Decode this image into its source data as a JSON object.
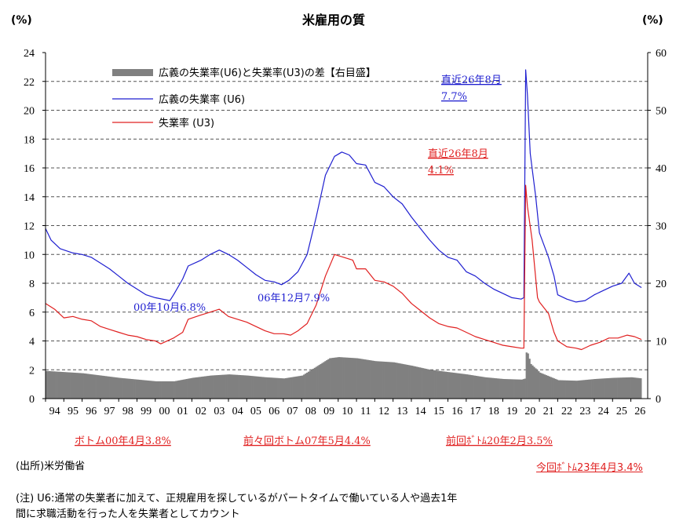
{
  "chart_data": {
    "type": "line",
    "title": "米雇用の質",
    "left_unit": "(%)",
    "right_unit": "(%)",
    "ylim_left": [
      0,
      24
    ],
    "ylim_right": [
      0,
      60
    ],
    "yticks_left": [
      "0",
      "2",
      "4",
      "6",
      "8",
      "10",
      "12",
      "14",
      "16",
      "18",
      "20",
      "22",
      "24"
    ],
    "yticks_right": [
      "0",
      "10",
      "20",
      "30",
      "40",
      "50",
      "60"
    ],
    "x_ticks": [
      "94",
      "95",
      "96",
      "97",
      "98",
      "99",
      "00",
      "01",
      "02",
      "03",
      "04",
      "05",
      "06",
      "07",
      "08",
      "09",
      "10",
      "11",
      "12",
      "13",
      "14",
      "15",
      "16",
      "17",
      "18",
      "19",
      "20",
      "21",
      "22",
      "23",
      "24",
      "25",
      "26"
    ],
    "x_range": [
      1994.0,
      2026.92
    ],
    "grid": "horizontal-dashed",
    "legend_position": "top-left",
    "series": [
      {
        "name": "広義の失業率(U6)と失業率(U3)の差【右目盛】",
        "kind": "bar",
        "axis": "right",
        "color": "#808080",
        "points": [
          [
            1994.0,
            4.8
          ],
          [
            1995.0,
            4.6
          ],
          [
            1996.0,
            4.4
          ],
          [
            1997.0,
            4.0
          ],
          [
            1998.0,
            3.6
          ],
          [
            1999.0,
            3.3
          ],
          [
            2000.0,
            3.0
          ],
          [
            2001.0,
            3.0
          ],
          [
            2002.0,
            3.6
          ],
          [
            2003.0,
            4.0
          ],
          [
            2004.0,
            4.2
          ],
          [
            2005.0,
            4.0
          ],
          [
            2006.0,
            3.7
          ],
          [
            2007.0,
            3.5
          ],
          [
            2008.0,
            4.0
          ],
          [
            2009.0,
            6.0
          ],
          [
            2009.5,
            7.0
          ],
          [
            2010.0,
            7.2
          ],
          [
            2011.0,
            7.0
          ],
          [
            2012.0,
            6.5
          ],
          [
            2013.0,
            6.3
          ],
          [
            2014.0,
            5.7
          ],
          [
            2015.0,
            5.0
          ],
          [
            2016.0,
            4.6
          ],
          [
            2017.0,
            4.2
          ],
          [
            2018.0,
            3.7
          ],
          [
            2019.0,
            3.4
          ],
          [
            2020.0,
            3.3
          ],
          [
            2020.2,
            3.5
          ],
          [
            2020.25,
            8.0
          ],
          [
            2020.3,
            8.2
          ],
          [
            2020.5,
            6.0
          ],
          [
            2021.0,
            4.5
          ],
          [
            2022.0,
            3.2
          ],
          [
            2023.0,
            3.1
          ],
          [
            2024.0,
            3.4
          ],
          [
            2025.0,
            3.6
          ],
          [
            2026.0,
            3.7
          ],
          [
            2026.58,
            3.5
          ]
        ]
      },
      {
        "name": "広義の失業率 (U6)",
        "kind": "line",
        "axis": "left",
        "color": "#1f1fd0",
        "points": [
          [
            1994.0,
            11.8
          ],
          [
            1994.3,
            11.0
          ],
          [
            1994.8,
            10.4
          ],
          [
            1995.5,
            10.1
          ],
          [
            1996.0,
            10.0
          ],
          [
            1996.5,
            9.8
          ],
          [
            1997.0,
            9.4
          ],
          [
            1997.5,
            9.0
          ],
          [
            1998.0,
            8.5
          ],
          [
            1998.5,
            8.0
          ],
          [
            1999.0,
            7.6
          ],
          [
            1999.5,
            7.2
          ],
          [
            2000.0,
            7.0
          ],
          [
            2000.8,
            6.8
          ],
          [
            2001.0,
            7.2
          ],
          [
            2001.5,
            8.3
          ],
          [
            2001.8,
            9.2
          ],
          [
            2002.5,
            9.6
          ],
          [
            2003.0,
            10.0
          ],
          [
            2003.5,
            10.3
          ],
          [
            2004.0,
            10.0
          ],
          [
            2004.5,
            9.6
          ],
          [
            2005.0,
            9.1
          ],
          [
            2005.5,
            8.6
          ],
          [
            2006.0,
            8.2
          ],
          [
            2006.5,
            8.1
          ],
          [
            2006.9,
            7.9
          ],
          [
            2007.3,
            8.2
          ],
          [
            2007.8,
            8.8
          ],
          [
            2008.3,
            10.0
          ],
          [
            2008.8,
            12.6
          ],
          [
            2009.3,
            15.5
          ],
          [
            2009.8,
            16.8
          ],
          [
            2010.2,
            17.1
          ],
          [
            2010.6,
            16.9
          ],
          [
            2011.0,
            16.3
          ],
          [
            2011.5,
            16.2
          ],
          [
            2012.0,
            15.0
          ],
          [
            2012.5,
            14.7
          ],
          [
            2013.0,
            14.0
          ],
          [
            2013.5,
            13.5
          ],
          [
            2014.0,
            12.6
          ],
          [
            2014.5,
            11.8
          ],
          [
            2015.0,
            11.0
          ],
          [
            2015.5,
            10.3
          ],
          [
            2016.0,
            9.8
          ],
          [
            2016.5,
            9.6
          ],
          [
            2017.0,
            8.8
          ],
          [
            2017.5,
            8.5
          ],
          [
            2018.0,
            8.0
          ],
          [
            2018.5,
            7.6
          ],
          [
            2019.0,
            7.3
          ],
          [
            2019.5,
            7.0
          ],
          [
            2020.0,
            6.9
          ],
          [
            2020.15,
            7.0
          ],
          [
            2020.25,
            22.8
          ],
          [
            2020.35,
            21.0
          ],
          [
            2020.5,
            17.0
          ],
          [
            2020.8,
            14.0
          ],
          [
            2021.0,
            11.5
          ],
          [
            2021.5,
            9.8
          ],
          [
            2021.8,
            8.5
          ],
          [
            2022.0,
            7.2
          ],
          [
            2022.5,
            6.9
          ],
          [
            2023.0,
            6.7
          ],
          [
            2023.5,
            6.8
          ],
          [
            2024.0,
            7.2
          ],
          [
            2024.5,
            7.5
          ],
          [
            2025.0,
            7.8
          ],
          [
            2025.5,
            8.0
          ],
          [
            2025.9,
            8.7
          ],
          [
            2026.2,
            8.0
          ],
          [
            2026.58,
            7.7
          ]
        ]
      },
      {
        "name": "失業率 (U3)",
        "kind": "line",
        "axis": "left",
        "color": "#e02020",
        "points": [
          [
            1994.0,
            6.6
          ],
          [
            1994.5,
            6.2
          ],
          [
            1995.0,
            5.6
          ],
          [
            1995.5,
            5.7
          ],
          [
            1996.0,
            5.5
          ],
          [
            1996.5,
            5.4
          ],
          [
            1997.0,
            5.0
          ],
          [
            1997.5,
            4.8
          ],
          [
            1998.0,
            4.6
          ],
          [
            1998.5,
            4.4
          ],
          [
            1999.0,
            4.3
          ],
          [
            1999.5,
            4.1
          ],
          [
            2000.0,
            4.0
          ],
          [
            2000.3,
            3.8
          ],
          [
            2001.0,
            4.2
          ],
          [
            2001.5,
            4.6
          ],
          [
            2001.8,
            5.5
          ],
          [
            2002.5,
            5.8
          ],
          [
            2003.0,
            6.0
          ],
          [
            2003.5,
            6.2
          ],
          [
            2004.0,
            5.7
          ],
          [
            2004.5,
            5.5
          ],
          [
            2005.0,
            5.3
          ],
          [
            2005.5,
            5.0
          ],
          [
            2006.0,
            4.7
          ],
          [
            2006.5,
            4.5
          ],
          [
            2007.0,
            4.5
          ],
          [
            2007.4,
            4.4
          ],
          [
            2007.8,
            4.7
          ],
          [
            2008.3,
            5.2
          ],
          [
            2008.8,
            6.5
          ],
          [
            2009.3,
            8.5
          ],
          [
            2009.8,
            10.0
          ],
          [
            2010.3,
            9.8
          ],
          [
            2010.8,
            9.6
          ],
          [
            2011.0,
            9.0
          ],
          [
            2011.5,
            9.0
          ],
          [
            2012.0,
            8.2
          ],
          [
            2012.5,
            8.1
          ],
          [
            2013.0,
            7.8
          ],
          [
            2013.5,
            7.3
          ],
          [
            2014.0,
            6.6
          ],
          [
            2014.5,
            6.1
          ],
          [
            2015.0,
            5.6
          ],
          [
            2015.5,
            5.2
          ],
          [
            2016.0,
            5.0
          ],
          [
            2016.5,
            4.9
          ],
          [
            2017.0,
            4.6
          ],
          [
            2017.5,
            4.3
          ],
          [
            2018.0,
            4.1
          ],
          [
            2018.5,
            3.9
          ],
          [
            2019.0,
            3.7
          ],
          [
            2019.5,
            3.6
          ],
          [
            2020.0,
            3.5
          ],
          [
            2020.15,
            3.5
          ],
          [
            2020.25,
            14.8
          ],
          [
            2020.35,
            13.3
          ],
          [
            2020.6,
            11.0
          ],
          [
            2020.9,
            7.0
          ],
          [
            2021.0,
            6.7
          ],
          [
            2021.5,
            5.9
          ],
          [
            2021.8,
            4.6
          ],
          [
            2022.0,
            4.0
          ],
          [
            2022.5,
            3.6
          ],
          [
            2023.0,
            3.5
          ],
          [
            2023.3,
            3.4
          ],
          [
            2023.8,
            3.7
          ],
          [
            2024.3,
            3.9
          ],
          [
            2024.8,
            4.2
          ],
          [
            2025.3,
            4.2
          ],
          [
            2025.8,
            4.4
          ],
          [
            2026.2,
            4.3
          ],
          [
            2026.58,
            4.1
          ]
        ]
      }
    ],
    "annotations": {
      "u6_latest": [
        "直近26年8月",
        "7.7%"
      ],
      "u3_latest": [
        "直近26年8月",
        "4.1%"
      ],
      "u6_2000": "00年10月6.8%",
      "u6_2006": "06年12月7.9%",
      "bottom_00": "ボトム00年4月3.8%",
      "bottom_07": "前々回ボトム07年5月4.4%",
      "bottom_20": "前回ﾎﾞﾄﾑ20年2月3.5%",
      "bottom_23": "今回ﾎﾞﾄﾑ23年4月3.4%"
    }
  },
  "notes": {
    "source": "(出所)米労働省",
    "note_line1": "(注) U6:通常の失業者に加えて、正規雇用を探しているがパートタイムで働いている人や過去1年",
    "note_line2": "間に求職活動を行った人を失業者としてカウント"
  }
}
